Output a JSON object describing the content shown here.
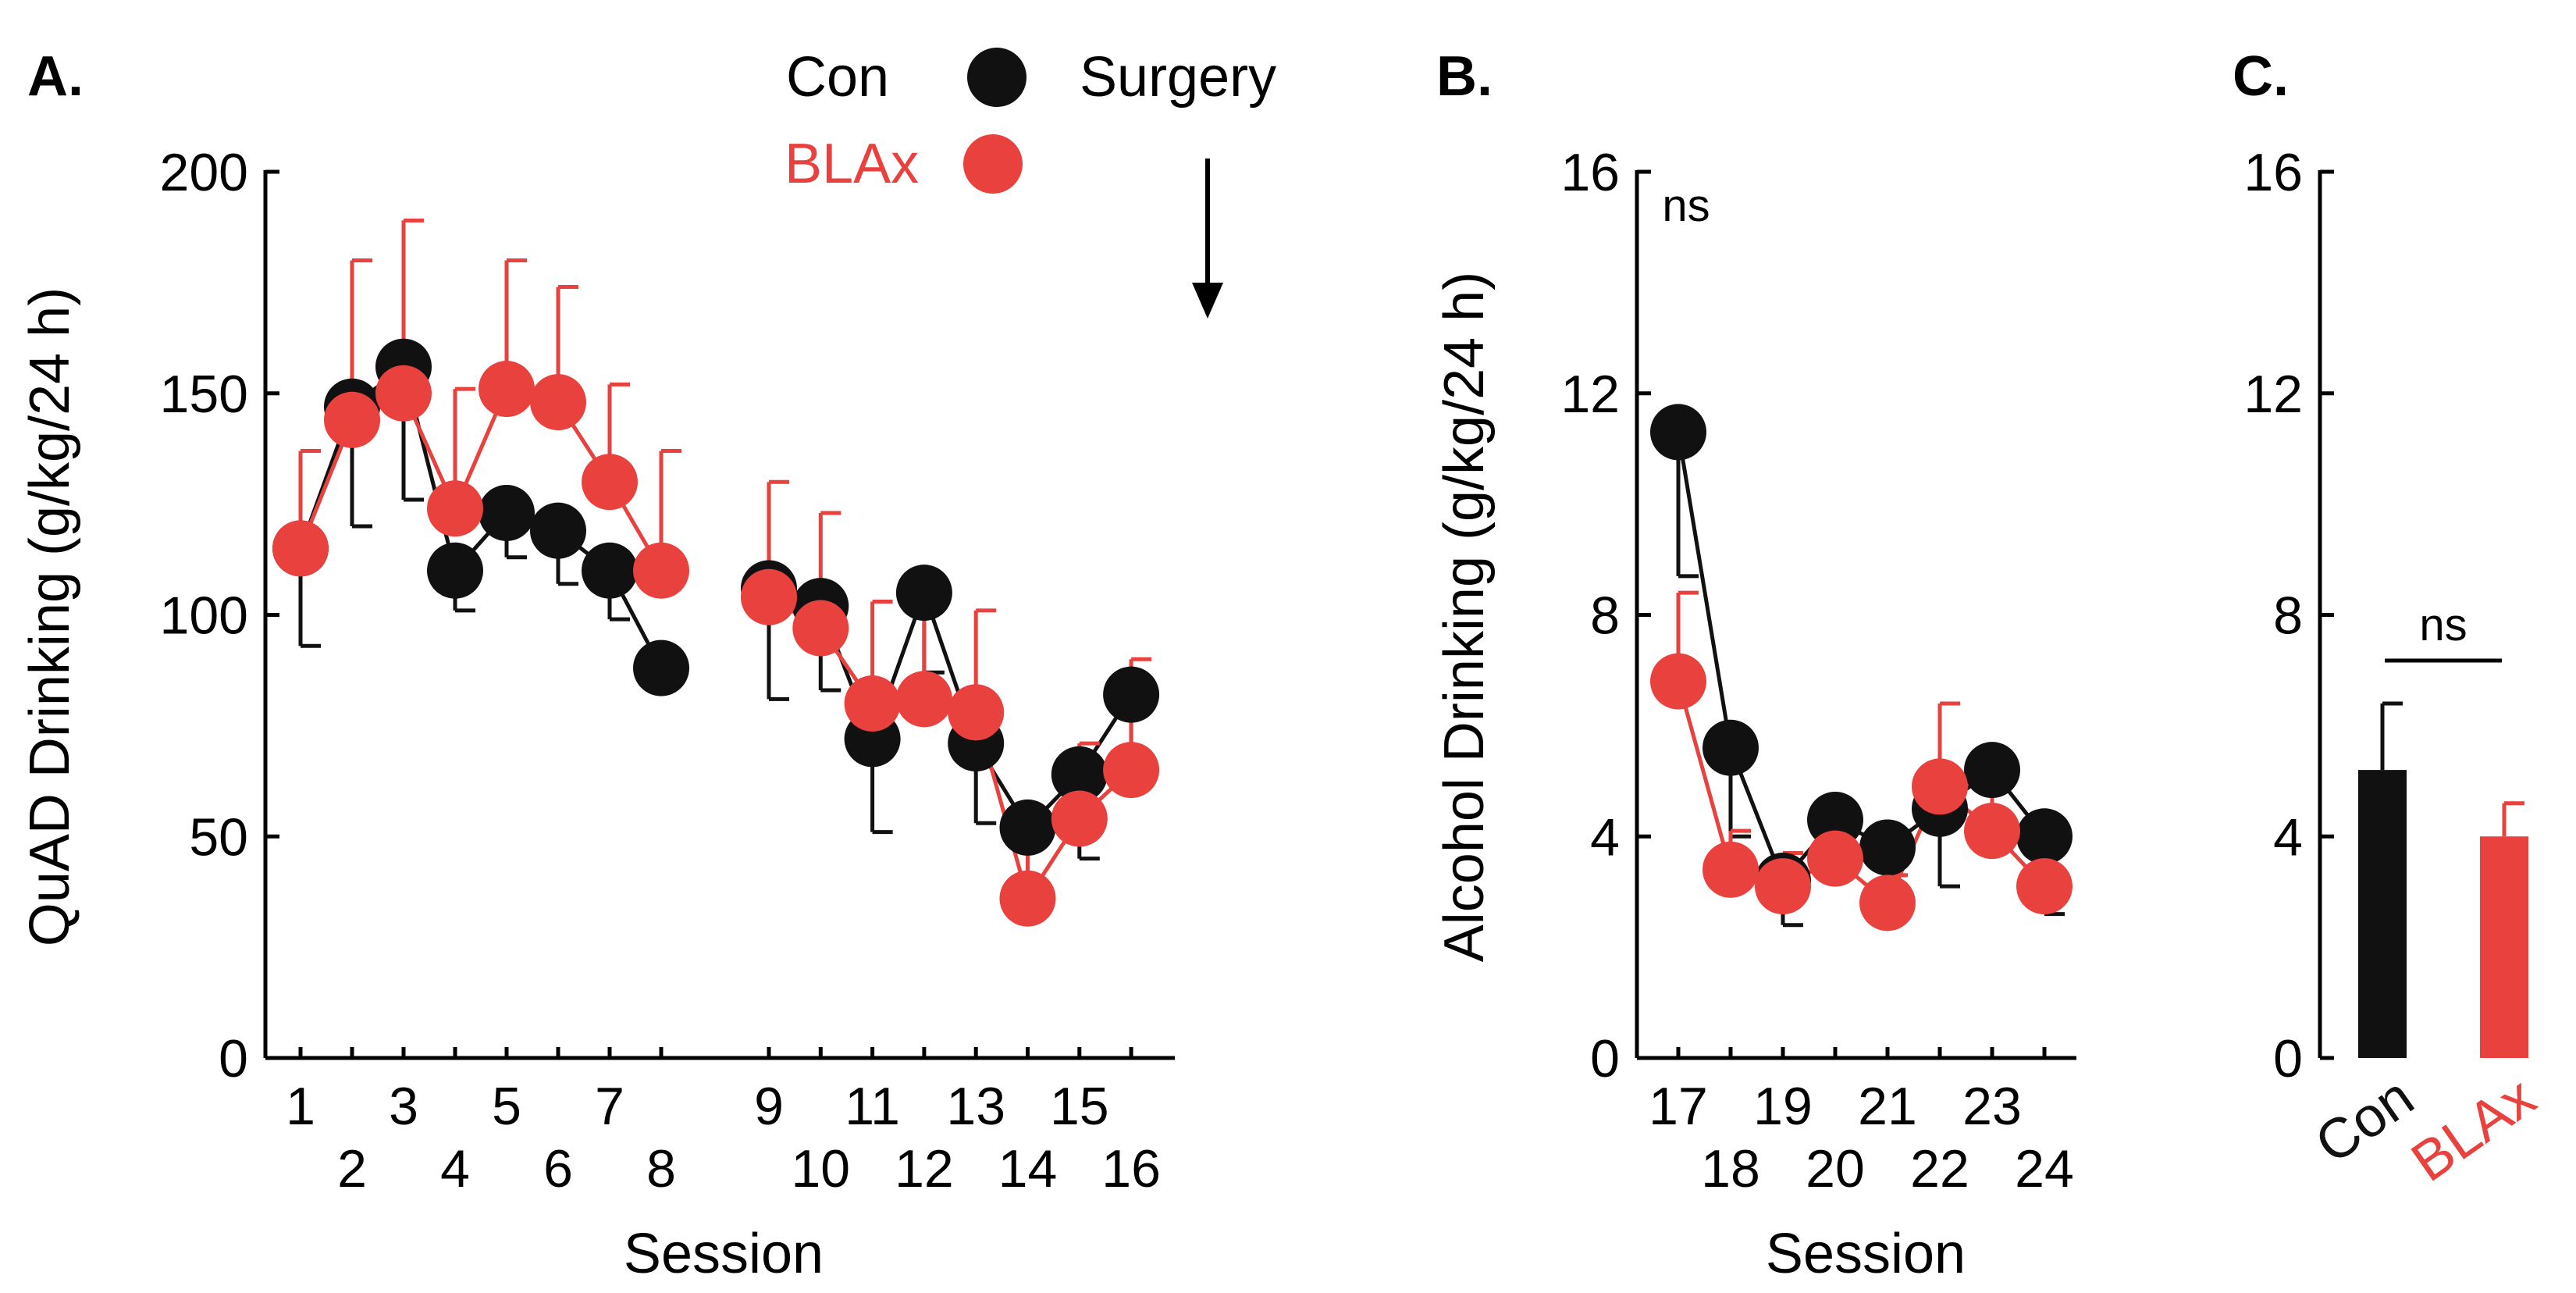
{
  "colors": {
    "con": "#111111",
    "blax": "#e8413e",
    "axis": "#000000"
  },
  "panels": [
    {
      "id": "A",
      "label": "A.",
      "type": "line",
      "ylabel": "QuAD Drinking (g/kg/24 h)",
      "xlabel": "Session",
      "ylim": [
        0,
        200
      ],
      "yticks": [
        "0",
        "50",
        "100",
        "150",
        "200"
      ],
      "xticks_row1": [
        "1",
        "3",
        "5",
        "7",
        "9",
        "11",
        "13",
        "15"
      ],
      "xticks_row2": [
        "2",
        "4",
        "6",
        "8",
        "10",
        "12",
        "14",
        "16"
      ],
      "legend": {
        "con": "Con",
        "blax": "BLAx"
      },
      "annotation": "Surgery"
    },
    {
      "id": "B",
      "label": "B.",
      "type": "line",
      "ylabel": "Alcohol Drinking (g/kg/24 h)",
      "xlabel": "Session",
      "ylim": [
        0,
        16
      ],
      "yticks": [
        "0",
        "4",
        "8",
        "12",
        "16"
      ],
      "xticks_row1": [
        "17",
        "19",
        "21",
        "23"
      ],
      "xticks_row2": [
        "18",
        "20",
        "22",
        "24"
      ],
      "annotation": "ns"
    },
    {
      "id": "C",
      "label": "C.",
      "type": "bar",
      "ylim": [
        0,
        16
      ],
      "yticks": [
        "0",
        "4",
        "8",
        "12",
        "16"
      ],
      "categories": [
        "Con",
        "BLAx"
      ],
      "annotation": "ns"
    }
  ],
  "chart_data": [
    {
      "type": "line",
      "title": "A.",
      "xlabel": "Session",
      "ylabel": "QuAD Drinking (g/kg/24 h)",
      "ylim": [
        0,
        200
      ],
      "x": [
        1,
        2,
        3,
        4,
        5,
        6,
        7,
        8,
        9,
        10,
        11,
        12,
        13,
        14,
        15,
        16
      ],
      "series": [
        {
          "name": "Con",
          "values": [
            115,
            147,
            156,
            110,
            123,
            119,
            110,
            88,
            106,
            102,
            72,
            105,
            71,
            52,
            64,
            82
          ],
          "error": [
            22,
            27,
            30,
            9,
            10,
            12,
            11,
            3,
            25,
            19,
            21,
            18,
            18,
            19,
            19,
            21
          ]
        },
        {
          "name": "BLAx",
          "values": [
            115,
            144,
            150,
            124,
            151,
            148,
            130,
            110,
            104,
            97,
            80,
            81,
            78,
            36,
            54,
            65
          ],
          "error": [
            22,
            36,
            39,
            27,
            29,
            26,
            22,
            27,
            26,
            26,
            23,
            24,
            23,
            16,
            17,
            25
          ]
        }
      ],
      "gaps_after": [
        8
      ],
      "annotations": [
        {
          "text": "Surgery",
          "at": "between sessions 16 and 17"
        }
      ]
    },
    {
      "type": "line",
      "title": "B.",
      "xlabel": "Session",
      "ylabel": "Alcohol Drinking (g/kg/24 h)",
      "ylim": [
        0,
        16
      ],
      "x": [
        17,
        18,
        19,
        20,
        21,
        22,
        23,
        24
      ],
      "series": [
        {
          "name": "Con",
          "values": [
            11.3,
            5.6,
            3.2,
            4.3,
            3.8,
            4.5,
            5.2,
            4.0
          ],
          "error": [
            2.6,
            1.6,
            0.8,
            1.0,
            0.8,
            1.4,
            1.3,
            1.4
          ]
        },
        {
          "name": "BLAx",
          "values": [
            6.8,
            3.4,
            3.1,
            3.6,
            2.8,
            4.9,
            4.1,
            3.1
          ],
          "error": [
            1.6,
            0.7,
            0.6,
            0.8,
            0.5,
            1.5,
            1.0,
            1.1
          ]
        }
      ],
      "annotations": [
        {
          "text": "ns"
        }
      ]
    },
    {
      "type": "bar",
      "title": "C.",
      "ylim": [
        0,
        16
      ],
      "categories": [
        "Con",
        "BLAx"
      ],
      "values": [
        5.2,
        4.0
      ],
      "error": [
        1.2,
        0.6
      ],
      "annotations": [
        {
          "text": "ns",
          "between": [
            "Con",
            "BLAx"
          ]
        }
      ]
    }
  ]
}
